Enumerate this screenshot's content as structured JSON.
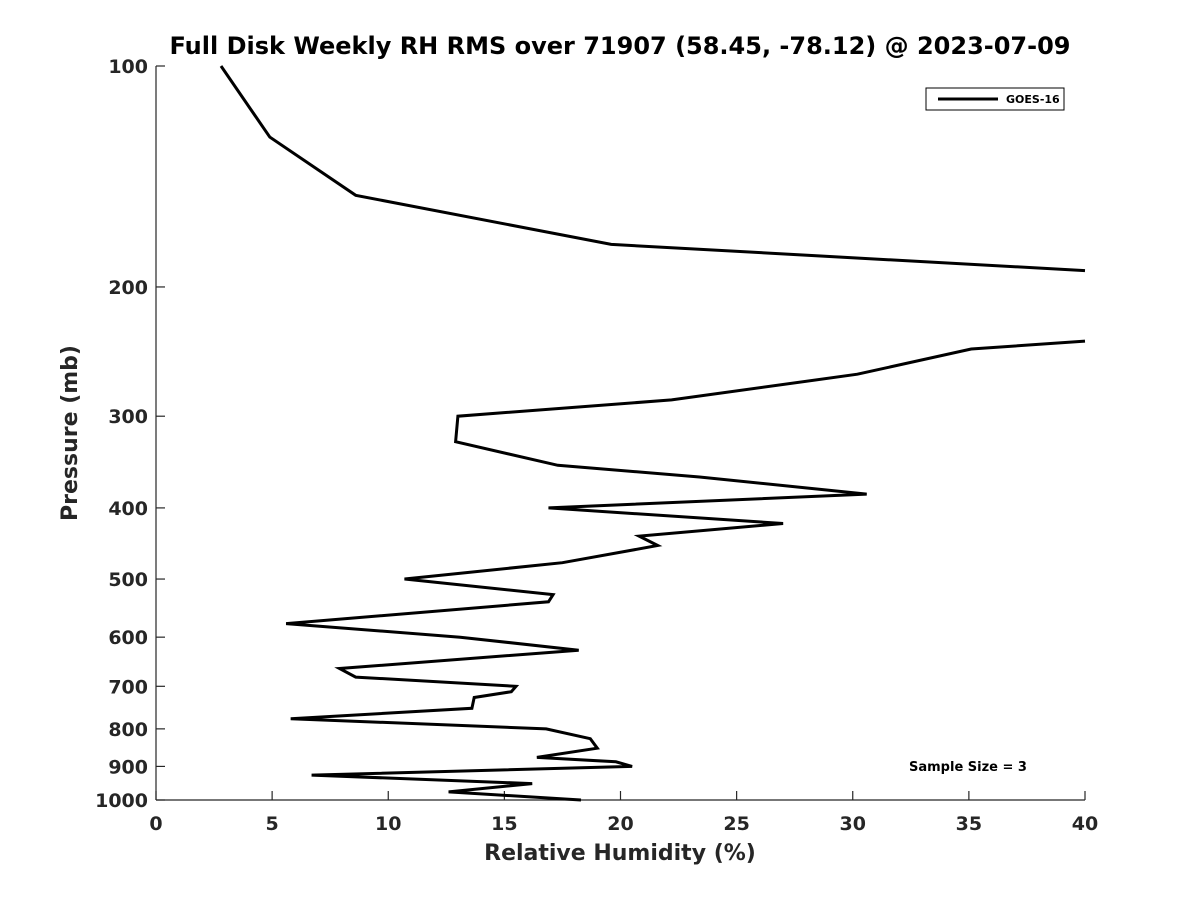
{
  "chart_data": {
    "type": "line",
    "title": "Full Disk Weekly RH RMS over 71907 (58.45, -78.12) @ 2023-07-09",
    "xlabel": "Relative Humidity (%)",
    "ylabel": "Pressure (mb)",
    "xlim": [
      0,
      40
    ],
    "ylim": [
      100,
      1000
    ],
    "y_scale": "log",
    "y_reversed": true,
    "x_ticks": [
      0,
      5,
      10,
      15,
      20,
      25,
      30,
      35,
      40
    ],
    "y_ticks": [
      100,
      200,
      300,
      400,
      500,
      600,
      700,
      800,
      900,
      1000
    ],
    "grid": false,
    "legend_position": "top-right",
    "series": [
      {
        "name": "GOES-16",
        "color": "#000000",
        "segments": [
          [
            {
              "x": 2.8,
              "y": 100
            },
            {
              "x": 4.9,
              "y": 125
            },
            {
              "x": 8.6,
              "y": 150
            },
            {
              "x": 19.6,
              "y": 175
            },
            {
              "x": 40.0,
              "y": 190
            }
          ],
          [
            {
              "x": 40.0,
              "y": 237
            },
            {
              "x": 35.1,
              "y": 243
            },
            {
              "x": 30.2,
              "y": 263
            },
            {
              "x": 22.2,
              "y": 285
            },
            {
              "x": 13.0,
              "y": 300
            },
            {
              "x": 12.9,
              "y": 325
            },
            {
              "x": 17.3,
              "y": 350
            },
            {
              "x": 23.4,
              "y": 363
            },
            {
              "x": 30.6,
              "y": 383
            },
            {
              "x": 16.9,
              "y": 400
            },
            {
              "x": 27.0,
              "y": 420
            },
            {
              "x": 20.8,
              "y": 437
            },
            {
              "x": 21.6,
              "y": 450
            },
            {
              "x": 17.5,
              "y": 475
            },
            {
              "x": 10.7,
              "y": 500
            },
            {
              "x": 17.1,
              "y": 525
            },
            {
              "x": 16.9,
              "y": 537
            },
            {
              "x": 5.6,
              "y": 575
            },
            {
              "x": 13.1,
              "y": 600
            },
            {
              "x": 18.2,
              "y": 625
            },
            {
              "x": 7.9,
              "y": 662
            },
            {
              "x": 8.6,
              "y": 680
            },
            {
              "x": 15.5,
              "y": 700
            },
            {
              "x": 15.3,
              "y": 712
            },
            {
              "x": 13.7,
              "y": 725
            },
            {
              "x": 13.6,
              "y": 750
            },
            {
              "x": 5.8,
              "y": 775
            },
            {
              "x": 16.8,
              "y": 800
            },
            {
              "x": 18.7,
              "y": 825
            },
            {
              "x": 19.0,
              "y": 850
            },
            {
              "x": 16.4,
              "y": 875
            },
            {
              "x": 19.8,
              "y": 887
            },
            {
              "x": 20.5,
              "y": 900
            },
            {
              "x": 6.7,
              "y": 925
            },
            {
              "x": 16.2,
              "y": 950
            },
            {
              "x": 12.6,
              "y": 975
            },
            {
              "x": 18.3,
              "y": 1000
            }
          ]
        ]
      }
    ],
    "annotation": "Sample Size = 3"
  }
}
